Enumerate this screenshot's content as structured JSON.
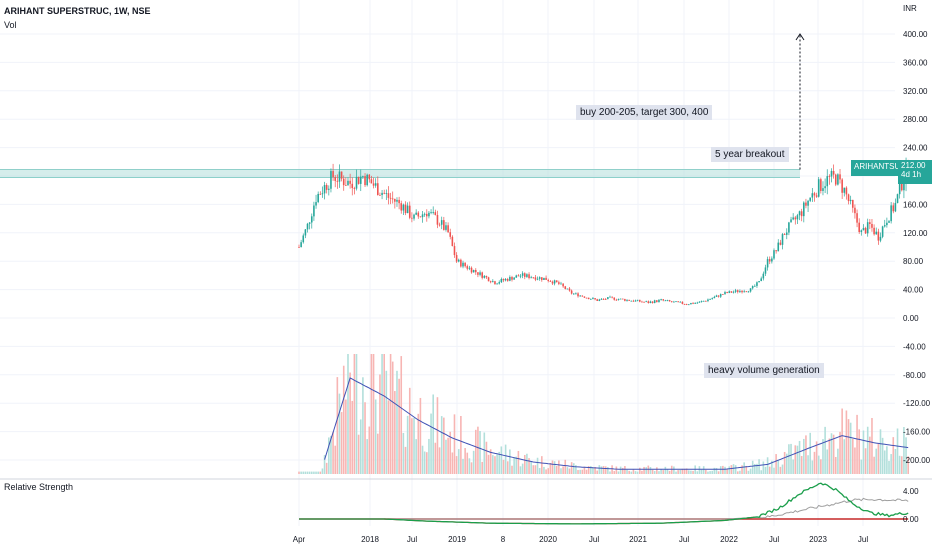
{
  "header": {
    "title": "ARIHANT SUPERSTRUC, 1W, NSE",
    "volume_label": "Vol",
    "rs_label": "Relative Strength",
    "unit": "INR"
  },
  "annotations": {
    "target_note": "buy 200-205, target 300, 400",
    "breakout_note": "5 year breakout",
    "volume_note": "heavy volume generation"
  },
  "price_tag": {
    "symbol": "ARIHANTSUP",
    "price": "212.00",
    "countdown": "4d 1h"
  },
  "colors": {
    "up": "#26a69a",
    "down": "#ef5350",
    "vol_up": "#b2dfdb",
    "vol_down": "#f7b5b3",
    "vol_ma": "#3f51b5",
    "breakout_zone": "#b2dfdb",
    "rs_line": "#1b9e4b",
    "rs_ma": "#9e9e9e"
  },
  "chart_data": {
    "type": "candlestick",
    "x_ticks": [
      "Apr",
      "2018",
      "Jul",
      "2019",
      "8",
      "2020",
      "Jul",
      "2021",
      "Jul",
      "2022",
      "Jul",
      "2023",
      "Jul"
    ],
    "y_ticks": [
      "400.00",
      "360.00",
      "320.00",
      "280.00",
      "240.00",
      "200.00",
      "160.00",
      "120.00",
      "80.00",
      "40.00",
      "0.00",
      "-40.00",
      "-80.00",
      "-120.00",
      "-160.00",
      "-200.00"
    ],
    "rs_ticks": [
      "4.00",
      "0.00"
    ],
    "price_keypoints": [
      [
        0,
        100
      ],
      [
        4,
        130
      ],
      [
        8,
        170
      ],
      [
        12,
        185
      ],
      [
        16,
        200
      ],
      [
        20,
        195
      ],
      [
        24,
        190
      ],
      [
        30,
        200
      ],
      [
        36,
        185
      ],
      [
        42,
        170
      ],
      [
        48,
        160
      ],
      [
        54,
        140
      ],
      [
        60,
        150
      ],
      [
        66,
        135
      ],
      [
        70,
        120
      ],
      [
        74,
        80
      ],
      [
        80,
        70
      ],
      [
        86,
        60
      ],
      [
        92,
        50
      ],
      [
        98,
        55
      ],
      [
        104,
        60
      ],
      [
        110,
        58
      ],
      [
        116,
        55
      ],
      [
        122,
        48
      ],
      [
        128,
        35
      ],
      [
        134,
        30
      ],
      [
        140,
        25
      ],
      [
        146,
        28
      ],
      [
        152,
        26
      ],
      [
        158,
        24
      ],
      [
        164,
        22
      ],
      [
        170,
        25
      ],
      [
        176,
        22
      ],
      [
        182,
        20
      ],
      [
        188,
        22
      ],
      [
        194,
        28
      ],
      [
        200,
        35
      ],
      [
        206,
        38
      ],
      [
        212,
        40
      ],
      [
        216,
        50
      ],
      [
        220,
        80
      ],
      [
        224,
        95
      ],
      [
        228,
        120
      ],
      [
        232,
        135
      ],
      [
        236,
        150
      ],
      [
        240,
        170
      ],
      [
        244,
        185
      ],
      [
        248,
        195
      ],
      [
        252,
        198
      ],
      [
        256,
        180
      ],
      [
        260,
        150
      ],
      [
        264,
        120
      ],
      [
        268,
        130
      ],
      [
        272,
        115
      ],
      [
        276,
        140
      ],
      [
        280,
        160
      ],
      [
        283,
        190
      ],
      [
        286,
        212
      ]
    ],
    "breakout_level": 205,
    "target_level": 400,
    "volume_ma_keypoints": [
      [
        12,
        0.12
      ],
      [
        24,
        0.8
      ],
      [
        40,
        0.65
      ],
      [
        56,
        0.45
      ],
      [
        72,
        0.3
      ],
      [
        90,
        0.18
      ],
      [
        110,
        0.1
      ],
      [
        130,
        0.06
      ],
      [
        150,
        0.04
      ],
      [
        170,
        0.04
      ],
      [
        200,
        0.04
      ],
      [
        220,
        0.08
      ],
      [
        240,
        0.22
      ],
      [
        255,
        0.32
      ],
      [
        270,
        0.26
      ],
      [
        286,
        0.22
      ]
    ],
    "rs_keypoints": [
      [
        0,
        0.0
      ],
      [
        40,
        0.0
      ],
      [
        60,
        -0.3
      ],
      [
        90,
        -0.6
      ],
      [
        130,
        -0.7
      ],
      [
        170,
        -0.6
      ],
      [
        200,
        -0.2
      ],
      [
        215,
        0.3
      ],
      [
        225,
        1.5
      ],
      [
        235,
        3.6
      ],
      [
        245,
        5.2
      ],
      [
        252,
        4.2
      ],
      [
        260,
        2.2
      ],
      [
        268,
        0.9
      ],
      [
        276,
        0.5
      ],
      [
        286,
        0.9
      ]
    ],
    "rs_ma_keypoints": [
      [
        0,
        0.0
      ],
      [
        200,
        0.0
      ],
      [
        220,
        0.3
      ],
      [
        240,
        1.5
      ],
      [
        260,
        2.7
      ],
      [
        270,
        2.8
      ],
      [
        286,
        2.6
      ]
    ]
  }
}
